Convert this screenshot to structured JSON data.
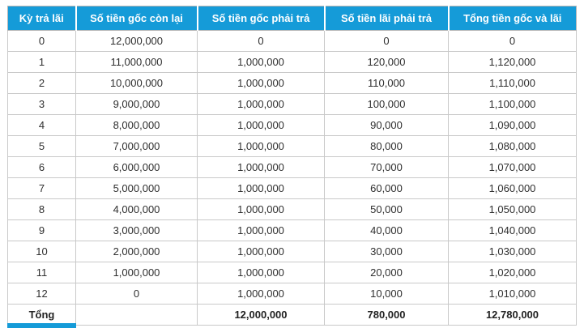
{
  "colors": {
    "header_bg": "#159BD8",
    "header_text": "#FFFFFF",
    "body_text": "#2F2F2F",
    "grid_border": "#C9C9C9",
    "outer_border": "#B5B5B5"
  },
  "table": {
    "headers": [
      "Kỳ trả lãi",
      "Số tiền gốc còn lại",
      "Số tiền gốc phải trả",
      "Số tiền lãi phải trả",
      "Tổng tiền gốc và lãi"
    ],
    "rows": [
      [
        "0",
        "12,000,000",
        "0",
        "0",
        "0"
      ],
      [
        "1",
        "11,000,000",
        "1,000,000",
        "120,000",
        "1,120,000"
      ],
      [
        "2",
        "10,000,000",
        "1,000,000",
        "110,000",
        "1,110,000"
      ],
      [
        "3",
        "9,000,000",
        "1,000,000",
        "100,000",
        "1,100,000"
      ],
      [
        "4",
        "8,000,000",
        "1,000,000",
        "90,000",
        "1,090,000"
      ],
      [
        "5",
        "7,000,000",
        "1,000,000",
        "80,000",
        "1,080,000"
      ],
      [
        "6",
        "6,000,000",
        "1,000,000",
        "70,000",
        "1,070,000"
      ],
      [
        "7",
        "5,000,000",
        "1,000,000",
        "60,000",
        "1,060,000"
      ],
      [
        "8",
        "4,000,000",
        "1,000,000",
        "50,000",
        "1,050,000"
      ],
      [
        "9",
        "3,000,000",
        "1,000,000",
        "40,000",
        "1,040,000"
      ],
      [
        "10",
        "2,000,000",
        "1,000,000",
        "30,000",
        "1,030,000"
      ],
      [
        "11",
        "1,000,000",
        "1,000,000",
        "20,000",
        "1,020,000"
      ],
      [
        "12",
        "0",
        "1,000,000",
        "10,000",
        "1,010,000"
      ]
    ],
    "total_row": [
      "Tổng",
      "",
      "12,000,000",
      "780,000",
      "12,780,000"
    ]
  },
  "chart_data": {
    "type": "table",
    "title": "",
    "columns": [
      "Kỳ trả lãi",
      "Số tiền gốc còn lại",
      "Số tiền gốc phải trả",
      "Số tiền lãi phải trả",
      "Tổng tiền gốc và lãi"
    ],
    "rows": [
      [
        0,
        12000000,
        0,
        0,
        0
      ],
      [
        1,
        11000000,
        1000000,
        120000,
        1120000
      ],
      [
        2,
        10000000,
        1000000,
        110000,
        1110000
      ],
      [
        3,
        9000000,
        1000000,
        100000,
        1100000
      ],
      [
        4,
        8000000,
        1000000,
        90000,
        1090000
      ],
      [
        5,
        7000000,
        1000000,
        80000,
        1080000
      ],
      [
        6,
        6000000,
        1000000,
        70000,
        1070000
      ],
      [
        7,
        5000000,
        1000000,
        60000,
        1060000
      ],
      [
        8,
        4000000,
        1000000,
        50000,
        1050000
      ],
      [
        9,
        3000000,
        1000000,
        40000,
        1040000
      ],
      [
        10,
        2000000,
        1000000,
        30000,
        1030000
      ],
      [
        11,
        1000000,
        1000000,
        20000,
        1020000
      ],
      [
        12,
        0,
        1000000,
        10000,
        1010000
      ]
    ],
    "total_row": {
      "label": "Tổng",
      "so_tien_goc_phai_tra": 12000000,
      "so_tien_lai_phai_tra": 780000,
      "tong_tien_goc_va_lai": 12780000
    }
  }
}
